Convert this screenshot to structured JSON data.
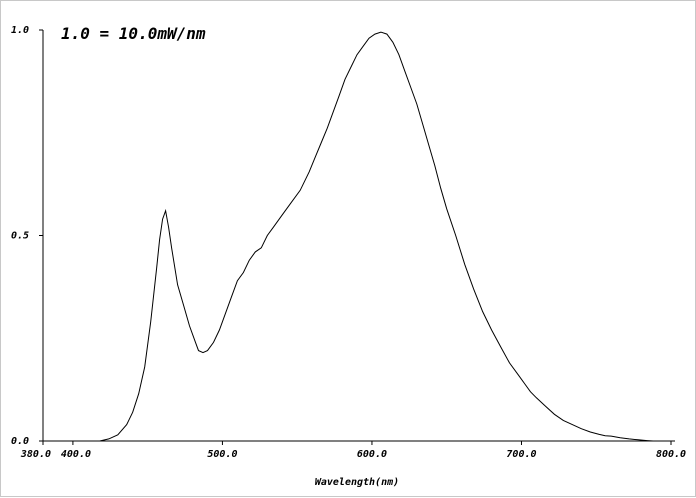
{
  "chart_data": {
    "type": "line",
    "title": "",
    "annotation": "1.0 = 10.0mW/nm",
    "xlabel": "Wavelength(nm)",
    "ylabel": "",
    "xlim": [
      380,
      800
    ],
    "ylim": [
      0,
      1
    ],
    "x_ticks": [
      {
        "value": 380,
        "label": "380.0"
      },
      {
        "value": 400,
        "label": "400.0"
      },
      {
        "value": 500,
        "label": "500.0"
      },
      {
        "value": 600,
        "label": "600.0"
      },
      {
        "value": 700,
        "label": "700.0"
      },
      {
        "value": 800,
        "label": "800.0"
      }
    ],
    "y_ticks": [
      {
        "value": 0.0,
        "label": "0.0"
      },
      {
        "value": 0.5,
        "label": "0.5"
      },
      {
        "value": 1.0,
        "label": "1.0"
      }
    ],
    "grid": false,
    "series": [
      {
        "color": "#000000",
        "x": [
          412,
          418,
          424,
          430,
          436,
          440,
          444,
          448,
          452,
          456,
          458,
          460,
          462,
          464,
          466,
          470,
          474,
          478,
          482,
          484,
          487,
          490,
          494,
          498,
          502,
          506,
          510,
          514,
          518,
          522,
          526,
          530,
          534,
          540,
          546,
          552,
          558,
          562,
          566,
          570,
          574,
          578,
          582,
          586,
          590,
          594,
          598,
          602,
          606,
          610,
          614,
          618,
          622,
          626,
          630,
          634,
          638,
          642,
          646,
          650,
          656,
          662,
          668,
          674,
          680,
          686,
          692,
          698,
          702,
          706,
          710,
          716,
          722,
          728,
          734,
          740,
          746,
          752,
          756,
          760,
          766,
          772,
          778,
          784,
          788
        ],
        "y": [
          0.0,
          0.0,
          0.005,
          0.015,
          0.04,
          0.07,
          0.115,
          0.18,
          0.29,
          0.42,
          0.49,
          0.54,
          0.56,
          0.52,
          0.47,
          0.38,
          0.33,
          0.28,
          0.24,
          0.22,
          0.215,
          0.22,
          0.24,
          0.27,
          0.31,
          0.35,
          0.39,
          0.41,
          0.44,
          0.46,
          0.47,
          0.5,
          0.52,
          0.55,
          0.58,
          0.61,
          0.655,
          0.69,
          0.725,
          0.76,
          0.8,
          0.84,
          0.88,
          0.91,
          0.94,
          0.96,
          0.98,
          0.99,
          0.995,
          0.99,
          0.97,
          0.94,
          0.9,
          0.86,
          0.82,
          0.77,
          0.72,
          0.67,
          0.615,
          0.565,
          0.5,
          0.43,
          0.37,
          0.315,
          0.27,
          0.23,
          0.19,
          0.16,
          0.14,
          0.12,
          0.105,
          0.085,
          0.065,
          0.05,
          0.04,
          0.03,
          0.022,
          0.016,
          0.013,
          0.012,
          0.008,
          0.005,
          0.003,
          0.001,
          0.0
        ]
      }
    ]
  }
}
